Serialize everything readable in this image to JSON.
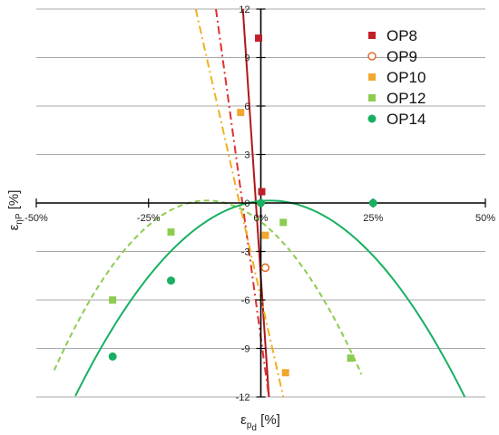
{
  "chart_data": {
    "type": "scatter",
    "x_ticks": [
      "-50%",
      "-25%",
      "0%",
      "25%",
      "50%"
    ],
    "y_ticks": [
      "12",
      "9",
      "6",
      "3",
      "0",
      "-3",
      "-6",
      "-9",
      "-12"
    ],
    "xlim": [
      -50,
      50
    ],
    "ylim": [
      -12,
      12
    ],
    "xlabel": "εp_d [%]",
    "ylabel": "εηP [%]",
    "legend_position": "top-right",
    "grid": "horizontal",
    "series": [
      {
        "name": "OP8",
        "marker": "square",
        "color": "#c0202a",
        "points": [
          [
            -0.5,
            10.2
          ],
          [
            0.2,
            0.7
          ]
        ]
      },
      {
        "name": "OP9",
        "marker": "circle-open",
        "color": "#e07030",
        "points": [
          [
            1.0,
            -4.0
          ]
        ]
      },
      {
        "name": "OP10",
        "marker": "square",
        "color": "#f0a830",
        "points": [
          [
            -4.5,
            5.6
          ],
          [
            1.0,
            -2.0
          ],
          [
            5.5,
            -10.5
          ]
        ]
      },
      {
        "name": "OP12",
        "marker": "square",
        "color": "#8ccc50",
        "points": [
          [
            -33.0,
            -6.0
          ],
          [
            -20.0,
            -1.8
          ],
          [
            5.0,
            -1.2
          ],
          [
            20.0,
            -9.6
          ]
        ]
      },
      {
        "name": "OP14",
        "marker": "circle",
        "color": "#18b060",
        "points": [
          [
            -33.0,
            -9.5
          ],
          [
            -20.0,
            -4.8
          ],
          [
            0.0,
            0.0
          ],
          [
            25.0,
            0.0
          ]
        ]
      }
    ],
    "trendlines": [
      {
        "color": "#b01818",
        "style": "solid",
        "points": [
          [
            -4.0,
            12.0
          ],
          [
            1.8,
            -12.0
          ]
        ]
      },
      {
        "color": "#e03030",
        "style": "dashdot",
        "points": [
          [
            -10.0,
            12.0
          ],
          [
            1.8,
            -12.0
          ]
        ]
      },
      {
        "color": "#f0b020",
        "style": "dashdot",
        "points": [
          [
            -14.5,
            12.0
          ],
          [
            5.0,
            -12.0
          ]
        ]
      },
      {
        "color": "#8ccc50",
        "style": "dashed",
        "curve": "parabola",
        "vertex": [
          -12.0,
          0.15
        ],
        "coef": -0.00908,
        "range": [
          -46.0,
          22.4
        ]
      },
      {
        "color": "#18b060",
        "style": "solid",
        "curve": "parabola",
        "vertex": [
          2.0,
          0.15
        ],
        "coef": -0.00645,
        "range": [
          -41.3,
          47.3
        ]
      }
    ]
  }
}
